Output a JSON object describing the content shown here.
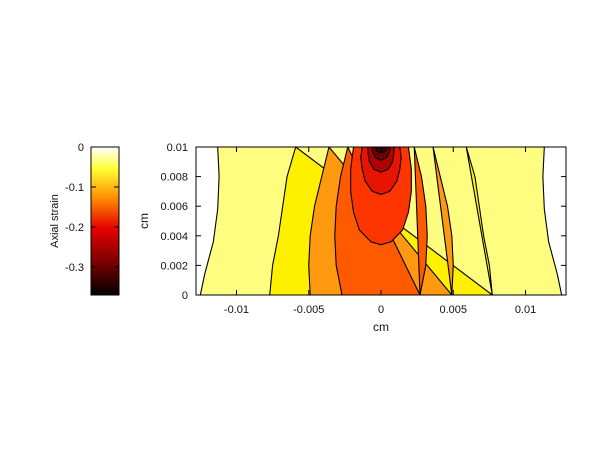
{
  "chart_data": {
    "type": "heatmap",
    "title": "",
    "xlabel": "cm",
    "ylabel": "cm",
    "xlim": [
      -0.0128,
      0.0128
    ],
    "ylim": [
      0,
      0.01
    ],
    "xticks": [
      -0.01,
      -0.005,
      0,
      0.005,
      0.01
    ],
    "xtick_labels": [
      "-0.01",
      "-0.005",
      "0",
      "0.005",
      "0.01"
    ],
    "yticks": [
      0,
      0.002,
      0.004,
      0.006,
      0.008,
      0.01
    ],
    "ytick_labels": [
      "0",
      "0.002",
      "0.004",
      "0.006",
      "0.008",
      "0.01"
    ],
    "colorbar": {
      "label": "Axial strain",
      "range": [
        -0.37,
        0
      ],
      "ticks": [
        0,
        -0.1,
        -0.2,
        -0.3
      ],
      "tick_labels": [
        "0",
        "-0.1",
        "-0.2",
        "-0.3"
      ],
      "colormap": "hot",
      "colors": [
        "#000000",
        "#7a0000",
        "#e60000",
        "#ff8a00",
        "#ffff33",
        "#ffffff"
      ]
    },
    "contour_levels": [
      -0.02,
      -0.06,
      -0.1,
      -0.14,
      -0.18,
      -0.22,
      -0.26,
      -0.3,
      -0.34
    ],
    "contour_fill_colors": [
      "#fffd80",
      "#fff000",
      "#ff9a10",
      "#ff5a00",
      "#ff3500",
      "#e61400",
      "#b00000",
      "#700000",
      "#3c0000"
    ],
    "background_level_color": "#ffffff",
    "contour_half_widths_cm": [
      {
        "level": -0.02,
        "side_x": 0.0128,
        "points": [
          [
            0.0125,
            0
          ],
          [
            0.0122,
            0.0014
          ],
          [
            0.0116,
            0.0036
          ],
          [
            0.0113,
            0.0058
          ],
          [
            0.0112,
            0.008
          ],
          [
            0.0113,
            0.01
          ]
        ]
      },
      {
        "level": -0.06,
        "points": [
          [
            0.0077,
            0
          ],
          [
            0.0075,
            0.002
          ],
          [
            0.0071,
            0.004
          ],
          [
            0.0068,
            0.006
          ],
          [
            0.0065,
            0.008
          ],
          [
            0.0059,
            0.01
          ]
        ]
      },
      {
        "level": -0.1,
        "points": [
          [
            0.0049,
            0
          ],
          [
            0.005,
            0.002
          ],
          [
            0.0049,
            0.004
          ],
          [
            0.0046,
            0.006
          ],
          [
            0.0041,
            0.008
          ],
          [
            0.0036,
            0.01
          ]
        ]
      },
      {
        "level": -0.14,
        "points": [
          [
            0.0027,
            0
          ],
          [
            0.0031,
            0.002
          ],
          [
            0.0032,
            0.004
          ],
          [
            0.0031,
            0.006
          ],
          [
            0.0028,
            0.008
          ],
          [
            0.0023,
            0.01
          ]
        ]
      },
      {
        "level": -0.18,
        "points": [
          [
            0,
            0.0034
          ],
          [
            0.0007,
            0.0036
          ],
          [
            0.0015,
            0.0044
          ],
          [
            0.0019,
            0.0056
          ],
          [
            0.0021,
            0.007
          ],
          [
            0.0021,
            0.0085
          ],
          [
            0.0019,
            0.01
          ]
        ]
      },
      {
        "level": -0.22,
        "points": [
          [
            0,
            0.0068
          ],
          [
            0.0006,
            0.007
          ],
          [
            0.0011,
            0.0077
          ],
          [
            0.0013,
            0.0085
          ],
          [
            0.0014,
            0.0093
          ],
          [
            0.0013,
            0.01
          ]
        ]
      },
      {
        "level": -0.26,
        "points": [
          [
            0,
            0.0083
          ],
          [
            0.0005,
            0.0085
          ],
          [
            0.0008,
            0.009
          ],
          [
            0.0009,
            0.0096
          ],
          [
            0.0009,
            0.01
          ]
        ]
      },
      {
        "level": -0.3,
        "points": [
          [
            0,
            0.0091
          ],
          [
            0.0004,
            0.0093
          ],
          [
            0.0006,
            0.0097
          ],
          [
            0.0006,
            0.01
          ]
        ]
      },
      {
        "level": -0.34,
        "points": [
          [
            0,
            0.0096
          ],
          [
            0.0003,
            0.0097
          ],
          [
            0.0004,
            0.01
          ]
        ]
      }
    ]
  }
}
